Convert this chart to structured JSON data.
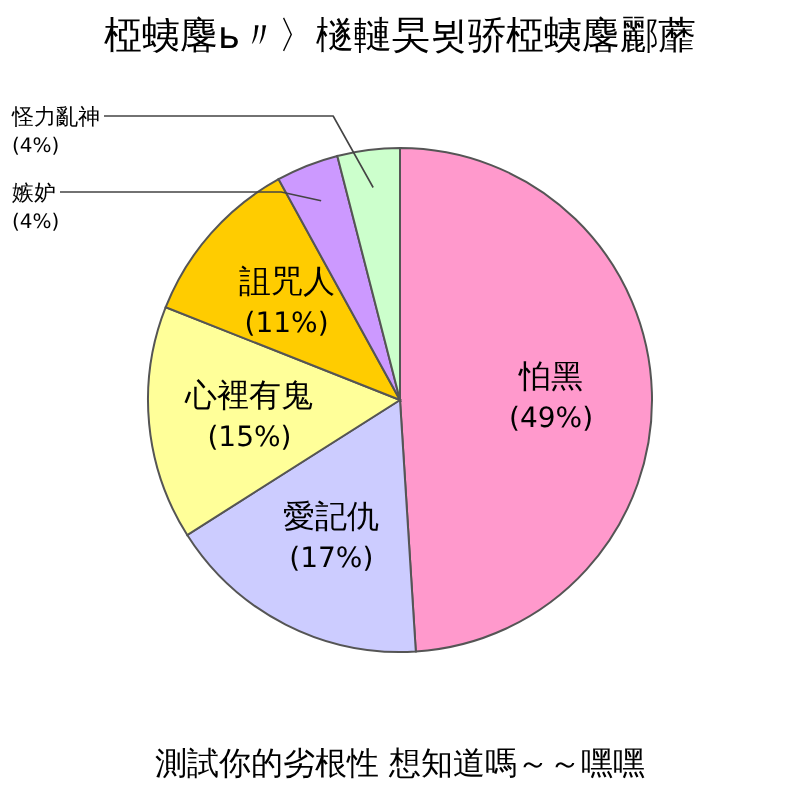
{
  "chart_data": {
    "type": "pie",
    "title": "椏蛦麐ь〃〉檖轋旲뵛骄椏蛦麐酈蘼",
    "categories": [
      "怕黑",
      "愛記仇",
      "心裡有鬼",
      "詛咒人",
      "嫉妒",
      "怪力亂神"
    ],
    "values": [
      49,
      17,
      15,
      11,
      4,
      4
    ],
    "value_labels": [
      "(49%)",
      "(17%)",
      "(15%)",
      "(11%)",
      "(4%)",
      "(4%)"
    ],
    "colors": [
      "#ff99cc",
      "#ccccff",
      "#ffff99",
      "#ffcc00",
      "#cc99ff",
      "#ccffcc"
    ],
    "annotations": [
      "測試你的劣根性 想知道嗎～～嘿嘿"
    ]
  }
}
